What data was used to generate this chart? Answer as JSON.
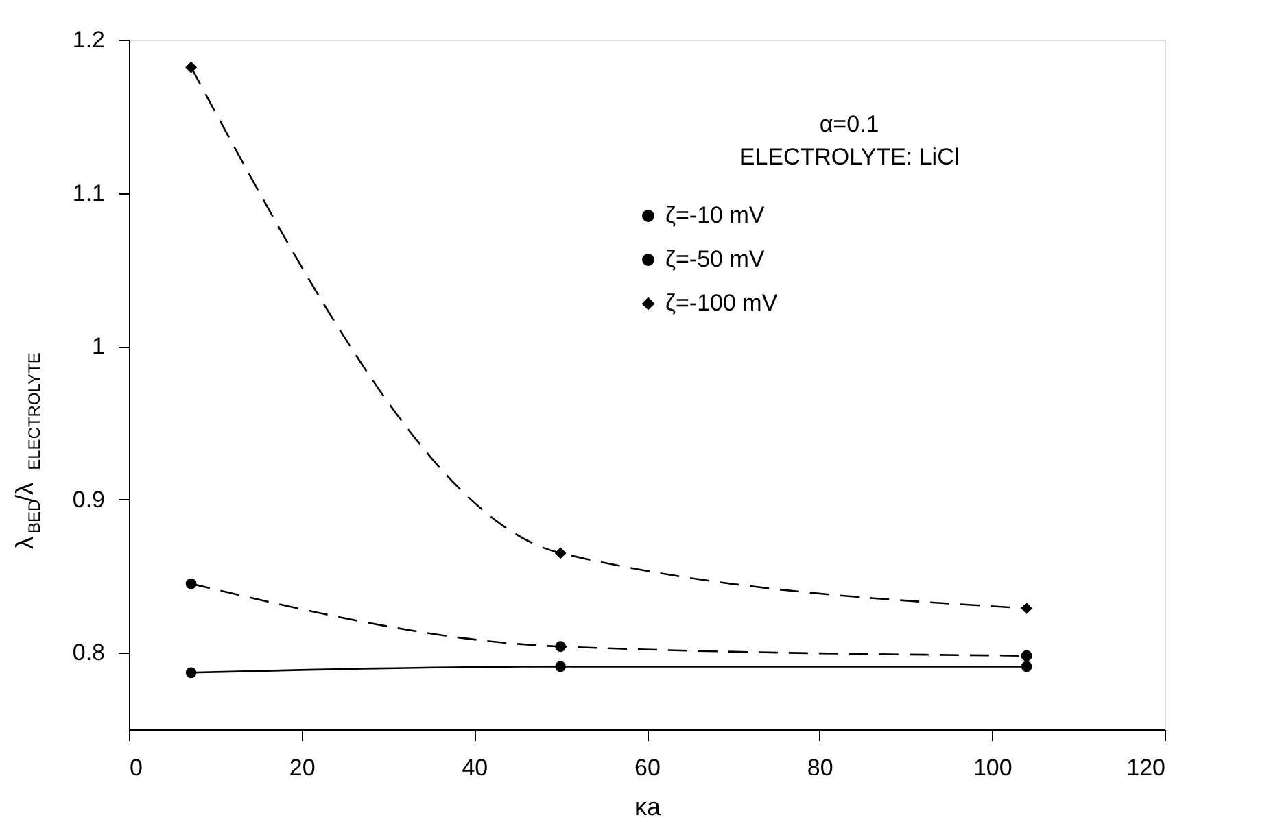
{
  "chart_data": {
    "type": "line",
    "x": [
      7.2,
      50,
      104
    ],
    "series": [
      {
        "name": "ζ=-10 mV",
        "color": "#000000",
        "values": [
          0.787,
          0.791,
          0.791
        ],
        "marker": "circle",
        "line_style": "solid"
      },
      {
        "name": "ζ=-50 mV",
        "color": "#000000",
        "values": [
          0.845,
          0.804,
          0.798
        ],
        "marker": "circle",
        "line_style": "dashed"
      },
      {
        "name": "ζ=-100 mV",
        "color": "#000000",
        "values": [
          1.182,
          0.865,
          0.829
        ],
        "marker": "diamond",
        "line_style": "dashed"
      }
    ],
    "xlabel": "κa",
    "ylabel": "λ$_{BED}$/λ$_{ELECTROLYTE}$",
    "annotations": [
      "α=0.1",
      "ELECTROLYTE: LiCl"
    ],
    "xlim": [
      0,
      120
    ],
    "xticks": [
      0,
      20,
      40,
      60,
      80,
      100,
      120
    ],
    "ylim": [
      0.75,
      1.2
    ],
    "yticks": [
      0.8,
      0.9,
      1,
      1.1,
      1.2
    ],
    "grid": false,
    "legend": "top right"
  }
}
